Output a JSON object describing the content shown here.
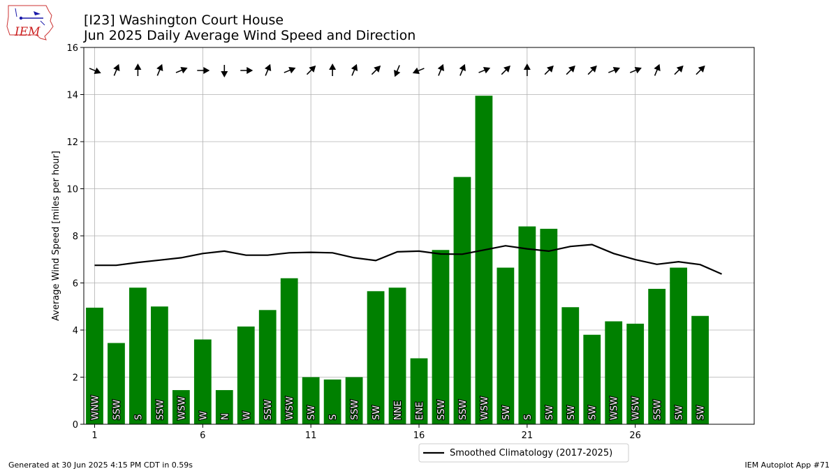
{
  "logo": {
    "text": "IEM"
  },
  "header": {
    "title": "[I23] Washington Court House",
    "subtitle": "Jun 2025 Daily Average Wind Speed and Direction"
  },
  "footer": {
    "generated": "Generated at 30 Jun 2025 4:15 PM CDT in 0.59s",
    "app": "IEM Autoplot App #71"
  },
  "legend": {
    "label": "Smoothed Climatology (2017-2025)"
  },
  "chart_data": {
    "type": "bar",
    "title": "[I23] Washington Court House",
    "subtitle": "Jun 2025 Daily Average Wind Speed and Direction",
    "xlabel": "",
    "ylabel": "Average Wind Speed [miles per hour]",
    "xlim": [
      0.5,
      31.5
    ],
    "ylim": [
      0,
      16
    ],
    "xticks": [
      1,
      6,
      11,
      16,
      21,
      26
    ],
    "yticks": [
      0,
      2,
      4,
      6,
      8,
      10,
      12,
      14,
      16
    ],
    "grid": true,
    "bar_color": "#008000",
    "line_color": "#000000",
    "days": [
      1,
      2,
      3,
      4,
      5,
      6,
      7,
      8,
      9,
      10,
      11,
      12,
      13,
      14,
      15,
      16,
      17,
      18,
      19,
      20,
      21,
      22,
      23,
      24,
      25,
      26,
      27,
      28,
      29
    ],
    "values": [
      4.95,
      3.45,
      5.8,
      5.0,
      1.45,
      3.6,
      1.45,
      4.15,
      4.85,
      6.2,
      2.0,
      1.9,
      2.0,
      5.65,
      5.8,
      2.8,
      7.4,
      10.5,
      13.95,
      6.65,
      8.4,
      8.3,
      4.97,
      3.8,
      4.37,
      4.27,
      5.75,
      6.65,
      4.6
    ],
    "directions": [
      "WNW",
      "SSW",
      "S",
      "SSW",
      "WSW",
      "W",
      "N",
      "W",
      "SSW",
      "WSW",
      "SW",
      "S",
      "SSW",
      "SW",
      "NNE",
      "ENE",
      "SSW",
      "SSW",
      "WSW",
      "SW",
      "S",
      "SW",
      "SW",
      "SW",
      "WSW",
      "WSW",
      "SSW",
      "SW",
      "SW"
    ],
    "direction_degrees": [
      292.5,
      202.5,
      180,
      202.5,
      247.5,
      270,
      0,
      270,
      202.5,
      247.5,
      225,
      180,
      202.5,
      225,
      22.5,
      67.5,
      202.5,
      202.5,
      247.5,
      225,
      180,
      225,
      225,
      225,
      247.5,
      247.5,
      202.5,
      225,
      225
    ],
    "climatology": {
      "name": "Smoothed Climatology (2017-2025)",
      "x": [
        1,
        2,
        3,
        4,
        5,
        6,
        7,
        8,
        9,
        10,
        11,
        12,
        13,
        14,
        15,
        16,
        17,
        18,
        19,
        20,
        21,
        22,
        23,
        24,
        25,
        26,
        27,
        28,
        29,
        30
      ],
      "values": [
        6.75,
        6.75,
        6.87,
        6.97,
        7.07,
        7.25,
        7.35,
        7.18,
        7.18,
        7.28,
        7.3,
        7.28,
        7.07,
        6.95,
        7.32,
        7.35,
        7.23,
        7.22,
        7.4,
        7.58,
        7.45,
        7.35,
        7.55,
        7.63,
        7.25,
        6.99,
        6.79,
        6.9,
        6.78,
        6.38
      ]
    }
  }
}
